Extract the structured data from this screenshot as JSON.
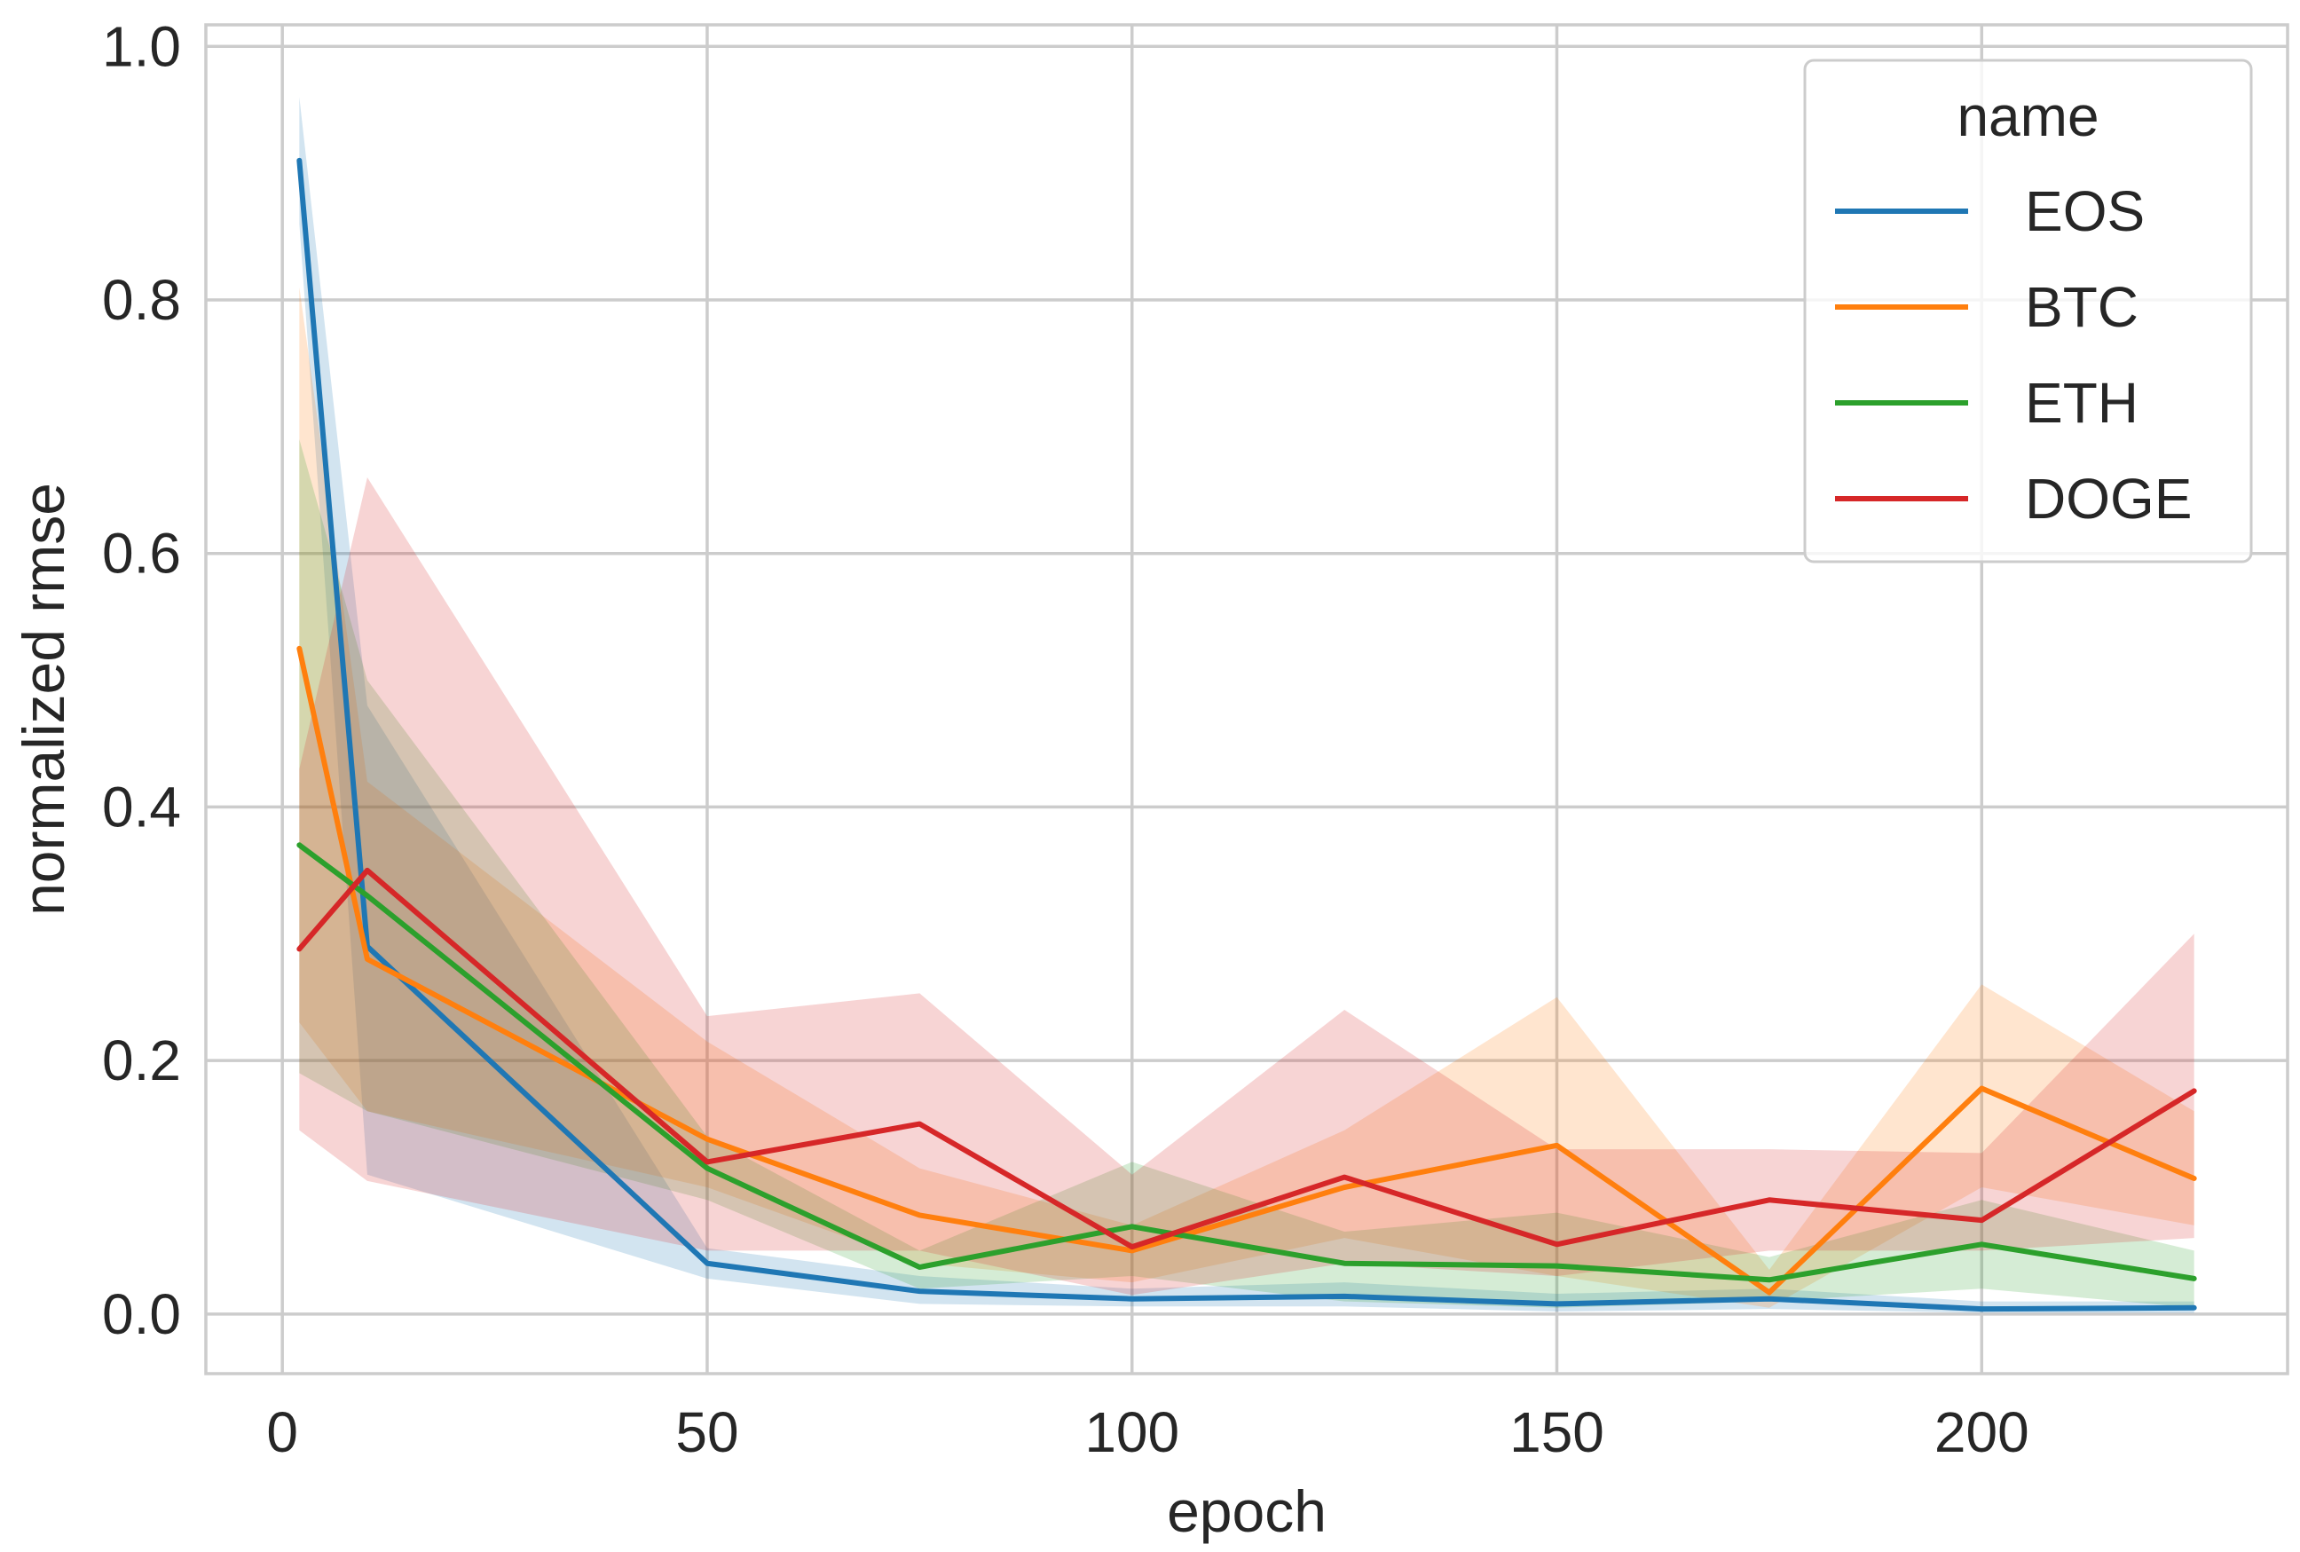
{
  "chart_data": {
    "type": "line",
    "xlabel": "epoch",
    "ylabel": "normalized rmse",
    "xlim": [
      -9,
      236
    ],
    "ylim": [
      -0.047,
      1.017
    ],
    "xticks": [
      0,
      50,
      100,
      150,
      200
    ],
    "yticks": [
      0.0,
      0.2,
      0.4,
      0.6,
      0.8,
      1.0
    ],
    "xtick_labels": [
      "0",
      "50",
      "100",
      "150",
      "200"
    ],
    "ytick_labels": [
      "0.0",
      "0.2",
      "0.4",
      "0.6",
      "0.8",
      "1.0"
    ],
    "grid": true,
    "legend": {
      "title": "name",
      "position": "top-right"
    },
    "x": [
      2,
      10,
      50,
      75,
      100,
      125,
      150,
      175,
      200,
      225
    ],
    "series": [
      {
        "name": "EOS",
        "color": "#1f77b4",
        "values": [
          0.91,
          0.29,
          0.04,
          0.018,
          0.012,
          0.014,
          0.008,
          0.012,
          0.004,
          0.005
        ],
        "ci_low": [
          0.86,
          0.11,
          0.028,
          0.008,
          0.006,
          0.006,
          0.002,
          0.004,
          0.001,
          0.001
        ],
        "ci_high": [
          0.96,
          0.48,
          0.052,
          0.03,
          0.02,
          0.025,
          0.016,
          0.02,
          0.01,
          0.01
        ]
      },
      {
        "name": "BTC",
        "color": "#ff7f0e",
        "values": [
          0.525,
          0.28,
          0.138,
          0.078,
          0.05,
          0.1,
          0.133,
          0.017,
          0.178,
          0.107
        ],
        "ci_low": [
          0.23,
          0.16,
          0.1,
          0.04,
          0.025,
          0.06,
          0.03,
          0.005,
          0.1,
          0.07
        ],
        "ci_high": [
          0.81,
          0.42,
          0.215,
          0.115,
          0.07,
          0.145,
          0.25,
          0.035,
          0.26,
          0.16
        ]
      },
      {
        "name": "ETH",
        "color": "#2ca02c",
        "values": [
          0.37,
          0.33,
          0.115,
          0.037,
          0.069,
          0.04,
          0.038,
          0.027,
          0.055,
          0.028
        ],
        "ci_low": [
          0.19,
          0.16,
          0.09,
          0.02,
          0.03,
          0.01,
          0.005,
          0.01,
          0.02,
          0.005
        ],
        "ci_high": [
          0.69,
          0.5,
          0.14,
          0.05,
          0.12,
          0.065,
          0.08,
          0.045,
          0.09,
          0.05
        ]
      },
      {
        "name": "DOGE",
        "color": "#d62728",
        "values": [
          0.288,
          0.35,
          0.12,
          0.15,
          0.053,
          0.108,
          0.055,
          0.09,
          0.074,
          0.176
        ],
        "ci_low": [
          0.145,
          0.105,
          0.05,
          0.05,
          0.015,
          0.04,
          0.03,
          0.05,
          0.05,
          0.06
        ],
        "ci_high": [
          0.43,
          0.66,
          0.235,
          0.253,
          0.11,
          0.24,
          0.13,
          0.13,
          0.127,
          0.3
        ]
      }
    ]
  }
}
